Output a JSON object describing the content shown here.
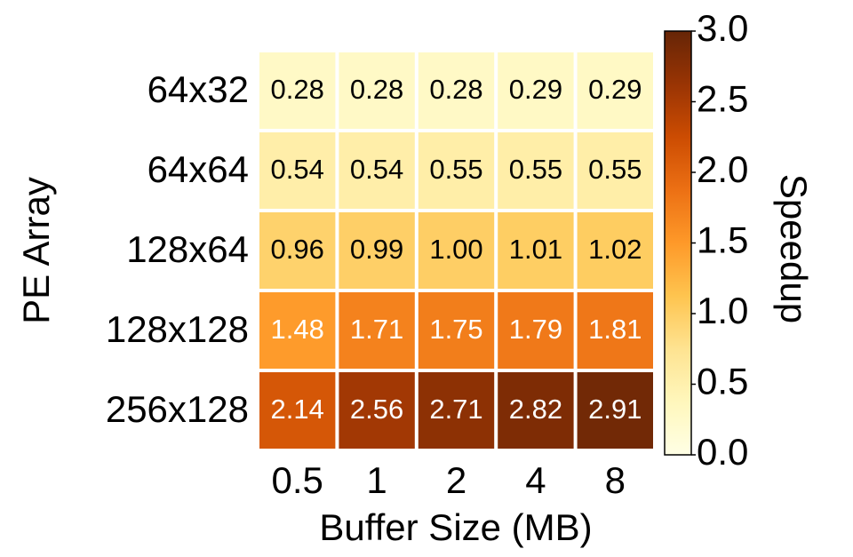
{
  "chart_data": {
    "type": "heatmap",
    "xlabel": "Buffer Size (MB)",
    "ylabel": "PE Array",
    "colorbar_label": "Speedup",
    "x_categories": [
      "0.5",
      "1",
      "2",
      "4",
      "8"
    ],
    "y_categories": [
      "64x32",
      "64x64",
      "128x64",
      "128x128",
      "256x128"
    ],
    "values": [
      [
        0.28,
        0.28,
        0.28,
        0.29,
        0.29
      ],
      [
        0.54,
        0.54,
        0.55,
        0.55,
        0.55
      ],
      [
        0.96,
        0.99,
        1.0,
        1.01,
        1.02
      ],
      [
        1.48,
        1.71,
        1.75,
        1.79,
        1.81
      ],
      [
        2.14,
        2.56,
        2.71,
        2.82,
        2.91
      ]
    ],
    "value_labels": [
      [
        "0.28",
        "0.28",
        "0.28",
        "0.29",
        "0.29"
      ],
      [
        "0.54",
        "0.54",
        "0.55",
        "0.55",
        "0.55"
      ],
      [
        "0.96",
        "0.99",
        "1.00",
        "1.01",
        "1.02"
      ],
      [
        "1.48",
        "1.71",
        "1.75",
        "1.79",
        "1.81"
      ],
      [
        "2.14",
        "2.56",
        "2.71",
        "2.82",
        "2.91"
      ]
    ],
    "clim": [
      0,
      3
    ],
    "cticks": [
      {
        "value": 0,
        "label": "0.0"
      },
      {
        "value": 0.5,
        "label": "0.5"
      },
      {
        "value": 1,
        "label": "1.0"
      },
      {
        "value": 1.5,
        "label": "1.5"
      },
      {
        "value": 2,
        "label": "2.0"
      },
      {
        "value": 2.5,
        "label": "2.5"
      },
      {
        "value": 3,
        "label": "3.0"
      }
    ],
    "colormap": [
      "#ffffe5",
      "#fff7bc",
      "#fee391",
      "#fec44f",
      "#fe9929",
      "#ec7014",
      "#cc4c02",
      "#993404",
      "#662506"
    ]
  }
}
